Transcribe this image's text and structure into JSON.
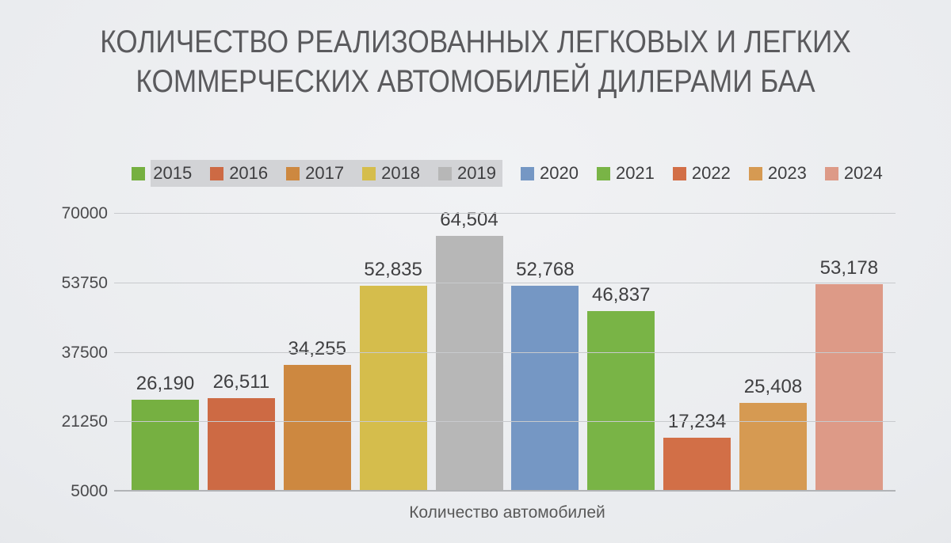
{
  "title": {
    "line1": "КОЛИЧЕСТВО РЕАЛИЗОВАННЫХ ЛЕГКОВЫХ И ЛЕГКИХ",
    "line2": "КОММЕРЧЕСКИХ АВТОМОБИЛЕЙ ДИЛЕРАМИ БАА",
    "color": "#5a5a5d"
  },
  "chart_data": {
    "type": "bar",
    "title": "Количество реализованных легковых и легких коммерческих автомобилей дилерами БАА",
    "categories": [
      "2015",
      "2016",
      "2017",
      "2018",
      "2019",
      "2020",
      "2021",
      "2022",
      "2023",
      "2024"
    ],
    "values": [
      26190,
      26511,
      34255,
      52835,
      64504,
      52768,
      46837,
      17234,
      25408,
      53178
    ],
    "value_labels": [
      "26,190",
      "26,511",
      "34,255",
      "52,835",
      "64,504",
      "52,768",
      "46,837",
      "17,234",
      "25,408",
      "53,178"
    ],
    "bar_colors": [
      "#76b041",
      "#cd6a44",
      "#cd8840",
      "#d5bd4c",
      "#b7b7b7",
      "#7597c4",
      "#79b446",
      "#d26f47",
      "#d69a52",
      "#dd9a87"
    ],
    "xlabel": "Количество автомобилей",
    "ylabel": "",
    "ylim": [
      5000,
      70000
    ],
    "yticks": [
      5000,
      21250,
      37500,
      53750,
      70000
    ],
    "grid": true,
    "legend_position": "top",
    "legend_highlight": {
      "years": [
        "2015",
        "2016",
        "2017",
        "2018",
        "2019"
      ],
      "color": "#d2d3d6"
    }
  },
  "axis_style": {
    "grid_color": "#c8cacd",
    "axis_color": "#b1b3b6",
    "tick_label_color": "#4a4a4c",
    "data_label_color": "#3f3f41"
  }
}
